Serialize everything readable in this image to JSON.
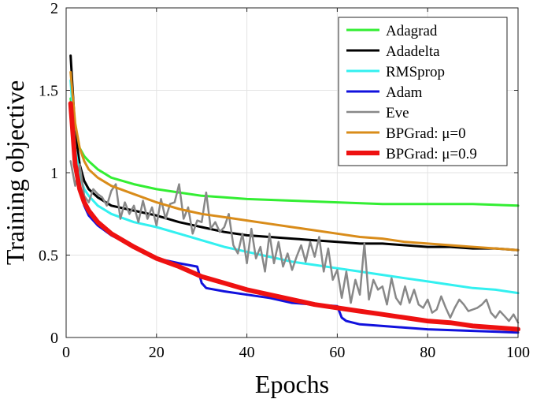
{
  "chart_data": {
    "type": "line",
    "title": "",
    "xlabel": "Epochs",
    "ylabel": "Training objective",
    "xlim": [
      0,
      100
    ],
    "ylim": [
      0,
      2
    ],
    "xticks": [
      0,
      20,
      40,
      60,
      80,
      100
    ],
    "yticks": [
      0,
      0.5,
      1,
      1.5,
      2
    ],
    "xtick_labels": [
      "0",
      "20",
      "40",
      "60",
      "80",
      "100"
    ],
    "ytick_labels": [
      "0",
      "0.5",
      "1",
      "1.5",
      "2"
    ],
    "grid": true,
    "legend_position": "top-right",
    "series": [
      {
        "name": "Adagrad",
        "color": "#33ee33",
        "x": [
          1,
          2,
          3,
          4,
          5,
          7,
          10,
          15,
          20,
          25,
          30,
          35,
          40,
          50,
          60,
          70,
          80,
          90,
          100
        ],
        "y": [
          1.45,
          1.22,
          1.15,
          1.1,
          1.07,
          1.02,
          0.97,
          0.93,
          0.9,
          0.88,
          0.86,
          0.85,
          0.84,
          0.83,
          0.82,
          0.81,
          0.81,
          0.81,
          0.8
        ]
      },
      {
        "name": "Adadelta",
        "color": "#000000",
        "x": [
          1,
          2,
          3,
          4,
          5,
          7,
          10,
          15,
          20,
          25,
          30,
          35,
          40,
          45,
          50,
          55,
          60,
          65,
          70,
          75,
          80,
          85,
          90,
          95,
          100
        ],
        "y": [
          1.71,
          1.25,
          1.05,
          0.95,
          0.9,
          0.85,
          0.8,
          0.77,
          0.74,
          0.7,
          0.67,
          0.64,
          0.62,
          0.61,
          0.6,
          0.59,
          0.58,
          0.57,
          0.57,
          0.56,
          0.55,
          0.55,
          0.54,
          0.54,
          0.53
        ]
      },
      {
        "name": "RMSprop",
        "color": "#33f0f0",
        "x": [
          1,
          2,
          3,
          4,
          5,
          7,
          10,
          15,
          20,
          25,
          30,
          35,
          40,
          45,
          50,
          55,
          60,
          65,
          70,
          75,
          80,
          85,
          90,
          95,
          100
        ],
        "y": [
          1.56,
          1.15,
          0.98,
          0.9,
          0.86,
          0.8,
          0.75,
          0.7,
          0.67,
          0.63,
          0.59,
          0.55,
          0.52,
          0.49,
          0.46,
          0.44,
          0.42,
          0.4,
          0.38,
          0.36,
          0.34,
          0.32,
          0.3,
          0.29,
          0.27
        ]
      },
      {
        "name": "Adam",
        "color": "#1111dd",
        "x": [
          1,
          2,
          3,
          4,
          5,
          7,
          10,
          15,
          20,
          25,
          29,
          30,
          31,
          35,
          40,
          45,
          50,
          55,
          60,
          61,
          62,
          65,
          70,
          80,
          90,
          100
        ],
        "y": [
          1.4,
          1.05,
          0.9,
          0.8,
          0.74,
          0.68,
          0.62,
          0.55,
          0.48,
          0.45,
          0.43,
          0.33,
          0.3,
          0.28,
          0.26,
          0.24,
          0.21,
          0.2,
          0.19,
          0.12,
          0.1,
          0.08,
          0.07,
          0.05,
          0.04,
          0.03
        ]
      },
      {
        "name": "Eve",
        "color": "#888888",
        "x": [
          1,
          2,
          3,
          4,
          5,
          6,
          7,
          8,
          9,
          10,
          11,
          12,
          13,
          14,
          15,
          16,
          17,
          18,
          19,
          20,
          21,
          22,
          23,
          24,
          25,
          26,
          27,
          28,
          29,
          30,
          31,
          32,
          33,
          34,
          35,
          36,
          37,
          38,
          39,
          40,
          41,
          42,
          43,
          44,
          45,
          46,
          47,
          48,
          49,
          50,
          51,
          52,
          53,
          54,
          55,
          56,
          57,
          58,
          59,
          60,
          61,
          62,
          63,
          64,
          65,
          66,
          67,
          68,
          69,
          70,
          71,
          72,
          73,
          74,
          75,
          76,
          77,
          78,
          79,
          80,
          81,
          82,
          83,
          84,
          85,
          86,
          87,
          88,
          89,
          90,
          91,
          92,
          93,
          94,
          95,
          96,
          97,
          98,
          99,
          100
        ],
        "y": [
          1.07,
          0.92,
          1.05,
          0.86,
          0.82,
          0.9,
          0.87,
          0.85,
          0.8,
          0.89,
          0.93,
          0.72,
          0.82,
          0.75,
          0.8,
          0.7,
          0.83,
          0.72,
          0.79,
          0.68,
          0.84,
          0.72,
          0.81,
          0.82,
          0.93,
          0.72,
          0.79,
          0.63,
          0.71,
          0.7,
          0.88,
          0.66,
          0.7,
          0.64,
          0.67,
          0.75,
          0.56,
          0.51,
          0.63,
          0.45,
          0.66,
          0.48,
          0.55,
          0.4,
          0.63,
          0.45,
          0.58,
          0.43,
          0.51,
          0.41,
          0.49,
          0.56,
          0.46,
          0.58,
          0.49,
          0.61,
          0.4,
          0.54,
          0.35,
          0.41,
          0.24,
          0.4,
          0.21,
          0.35,
          0.26,
          0.57,
          0.23,
          0.35,
          0.29,
          0.31,
          0.2,
          0.36,
          0.24,
          0.2,
          0.31,
          0.21,
          0.29,
          0.2,
          0.18,
          0.23,
          0.15,
          0.17,
          0.25,
          0.18,
          0.12,
          0.18,
          0.23,
          0.2,
          0.16,
          0.17,
          0.18,
          0.2,
          0.23,
          0.15,
          0.12,
          0.16,
          0.13,
          0.1,
          0.14,
          0.09
        ]
      },
      {
        "name": "BPGrad: μ=0",
        "color": "#d98c1a",
        "x": [
          1,
          2,
          3,
          4,
          5,
          7,
          10,
          15,
          20,
          25,
          30,
          35,
          40,
          45,
          50,
          55,
          60,
          65,
          70,
          75,
          80,
          85,
          90,
          95,
          100
        ],
        "y": [
          1.61,
          1.3,
          1.15,
          1.07,
          1.02,
          0.97,
          0.92,
          0.87,
          0.82,
          0.78,
          0.75,
          0.73,
          0.71,
          0.69,
          0.67,
          0.65,
          0.63,
          0.61,
          0.6,
          0.58,
          0.57,
          0.56,
          0.55,
          0.54,
          0.53
        ]
      },
      {
        "name": "BPGrad: μ=0.9",
        "color": "#ee1111",
        "x": [
          1,
          2,
          3,
          4,
          5,
          7,
          10,
          15,
          20,
          25,
          30,
          35,
          40,
          45,
          50,
          55,
          60,
          65,
          70,
          75,
          80,
          85,
          90,
          95,
          100
        ],
        "y": [
          1.42,
          1.05,
          0.9,
          0.82,
          0.77,
          0.7,
          0.63,
          0.55,
          0.48,
          0.43,
          0.37,
          0.33,
          0.29,
          0.26,
          0.23,
          0.2,
          0.18,
          0.16,
          0.14,
          0.12,
          0.1,
          0.09,
          0.07,
          0.06,
          0.05
        ]
      }
    ]
  }
}
